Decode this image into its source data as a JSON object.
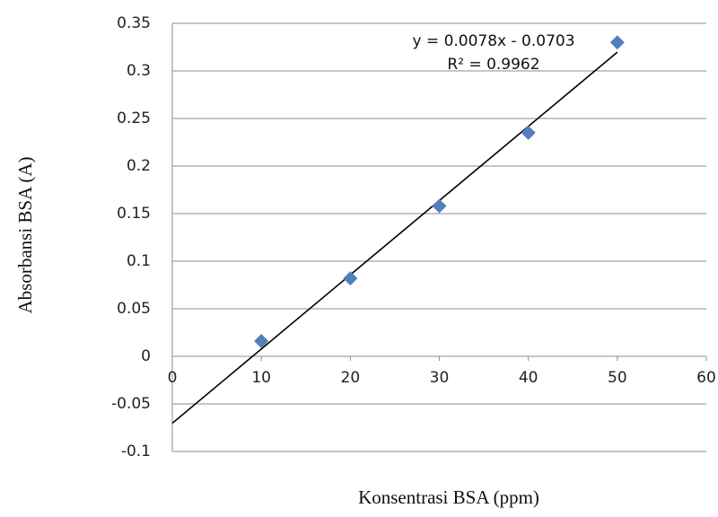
{
  "chart_data": {
    "type": "scatter",
    "x_label": "Konsentrasi BSA (ppm)",
    "y_label": "Absorbansi BSA (A)",
    "x": [
      10,
      20,
      30,
      40,
      50
    ],
    "values": [
      0.016,
      0.082,
      0.158,
      0.235,
      0.33
    ],
    "color": "#4f81bd",
    "xlim": [
      0,
      60
    ],
    "xticks": [
      0,
      10,
      20,
      30,
      40,
      50,
      60
    ],
    "ylim": [
      -0.1,
      0.35
    ],
    "yticks": [
      0.35,
      0.3,
      0.25,
      0.2,
      0.15,
      0.1,
      0.05,
      0,
      -0.05,
      -0.1
    ],
    "grid": true,
    "trendline": {
      "x": [
        0,
        50
      ],
      "values": [
        -0.0703,
        0.3197
      ],
      "color": "#000000",
      "equation": "y = 0.0078x - 0.0703",
      "r_squared": "R² = 0.9962"
    }
  }
}
